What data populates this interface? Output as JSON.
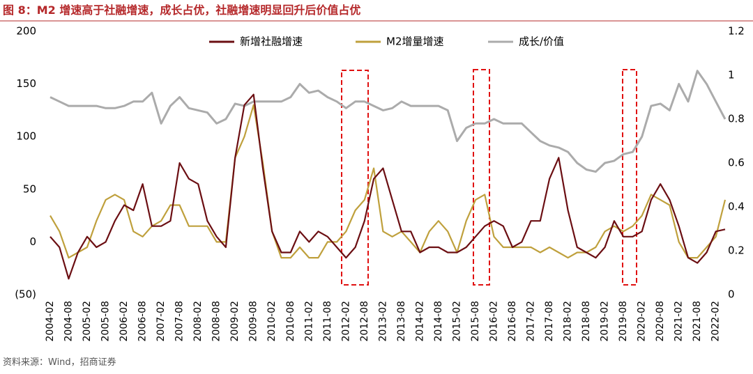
{
  "chart_data": {
    "type": "line",
    "title": "图 8：M2 增速高于社融增速，成长占优，社融增速明显回升后价值占优",
    "source": "资料来源：Wind，招商证券",
    "categories": [
      "2004-02",
      null,
      "2004-08",
      null,
      "2005-02",
      null,
      "2005-08",
      null,
      "2006-02",
      null,
      "2006-08",
      null,
      "2007-02",
      null,
      "2007-08",
      null,
      "2008-02",
      null,
      "2008-08",
      null,
      "2009-02",
      null,
      "2009-08",
      null,
      "2010-02",
      null,
      "2010-08",
      null,
      "2011-02",
      null,
      "2011-08",
      null,
      "2012-02",
      null,
      "2012-08",
      null,
      "2013-02",
      null,
      "2013-08",
      null,
      "2014-02",
      null,
      "2014-08",
      null,
      "2015-02",
      null,
      "2015-08",
      null,
      "2016-02",
      null,
      "2016-08",
      null,
      "2017-02",
      null,
      "2017-08",
      null,
      "2018-02",
      null,
      "2018-08",
      null,
      "2019-02",
      null,
      "2019-08",
      null,
      "2020-02",
      null,
      "2020-08",
      null,
      "2021-02",
      null,
      "2021-08",
      null,
      "2022-02",
      null
    ],
    "series": [
      {
        "name": "新增社融增速",
        "color": "#6b0e12",
        "values": [
          5,
          -5,
          -35,
          -10,
          5,
          -5,
          0,
          20,
          35,
          30,
          55,
          15,
          15,
          20,
          75,
          60,
          55,
          20,
          5,
          -5,
          80,
          130,
          140,
          70,
          10,
          -10,
          -10,
          10,
          0,
          10,
          5,
          -5,
          -15,
          -5,
          20,
          60,
          70,
          40,
          10,
          10,
          -10,
          -5,
          -5,
          -10,
          -10,
          -5,
          5,
          15,
          20,
          15,
          -5,
          0,
          20,
          20,
          60,
          80,
          30,
          -5,
          -10,
          -15,
          -5,
          20,
          5,
          5,
          10,
          40,
          55,
          40,
          15,
          -15,
          -20,
          -10,
          10,
          12
        ]
      },
      {
        "name": "M2增量增速",
        "color": "#bfa03c",
        "values": [
          25,
          10,
          -15,
          -10,
          -5,
          20,
          40,
          45,
          40,
          10,
          5,
          15,
          20,
          35,
          35,
          15,
          15,
          15,
          0,
          0,
          80,
          100,
          130,
          75,
          10,
          -15,
          -15,
          -5,
          -15,
          -15,
          0,
          0,
          10,
          30,
          40,
          70,
          10,
          5,
          10,
          0,
          -10,
          10,
          20,
          10,
          -10,
          20,
          40,
          45,
          5,
          -5,
          -5,
          -5,
          -5,
          -10,
          -5,
          -10,
          -15,
          -10,
          -10,
          -5,
          10,
          15,
          10,
          15,
          25,
          45,
          40,
          35,
          0,
          -15,
          -15,
          -5,
          5,
          40
        ]
      },
      {
        "name": "成长/价值",
        "color": "#ababab",
        "axis": "y2",
        "values": [
          0.9,
          0.88,
          0.86,
          0.86,
          0.86,
          0.86,
          0.85,
          0.85,
          0.86,
          0.88,
          0.88,
          0.92,
          0.78,
          0.86,
          0.9,
          0.85,
          0.84,
          0.83,
          0.78,
          0.8,
          0.87,
          0.86,
          0.88,
          0.88,
          0.88,
          0.88,
          0.9,
          0.96,
          0.92,
          0.93,
          0.9,
          0.88,
          0.85,
          0.88,
          0.88,
          0.86,
          0.84,
          0.85,
          0.88,
          0.86,
          0.86,
          0.86,
          0.86,
          0.84,
          0.7,
          0.76,
          0.78,
          0.78,
          0.8,
          0.78,
          0.78,
          0.78,
          0.74,
          0.7,
          0.68,
          0.67,
          0.65,
          0.6,
          0.57,
          0.56,
          0.6,
          0.61,
          0.64,
          0.65,
          0.72,
          0.86,
          0.87,
          0.84,
          0.96,
          0.88,
          1.02,
          0.96,
          0.88,
          0.8
        ]
      }
    ],
    "ylim": [
      -50,
      200
    ],
    "yticks": [
      {
        "value": -50,
        "label": "(50)"
      },
      0,
      50,
      100,
      150,
      200
    ],
    "y2lim": [
      0,
      1.2
    ],
    "y2ticks": [
      0,
      0.2,
      0.4,
      0.6,
      0.8,
      1,
      1.2
    ],
    "legend": "top"
  }
}
